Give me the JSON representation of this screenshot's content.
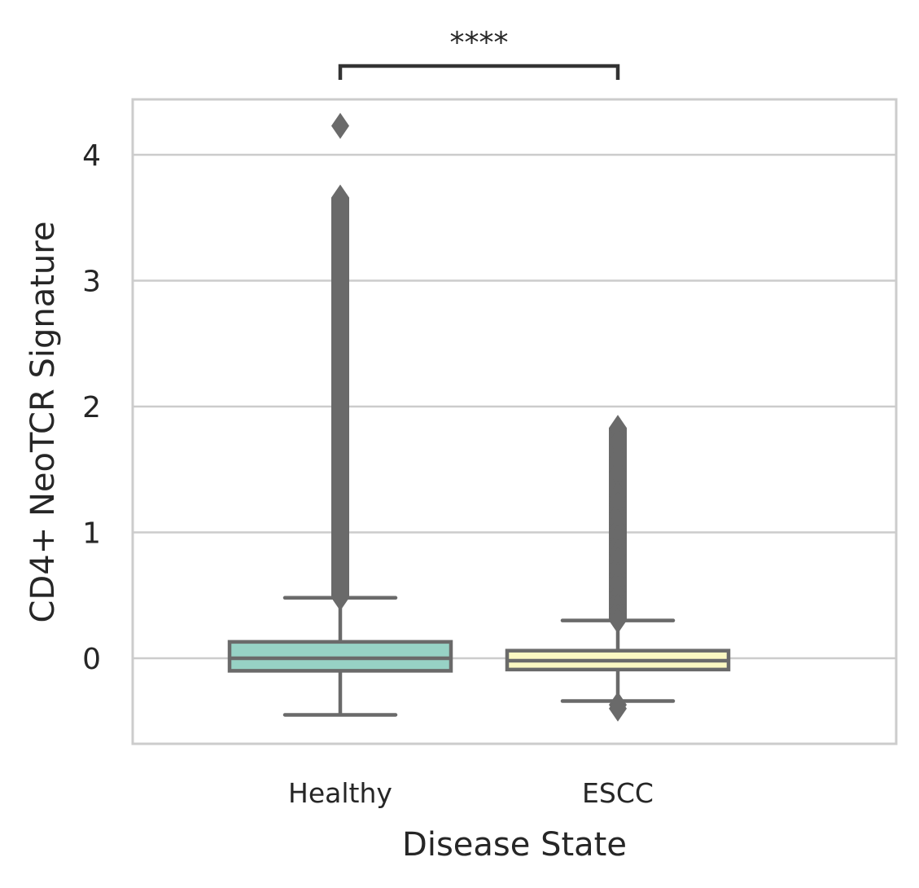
{
  "chart_data": {
    "type": "box",
    "title": "",
    "xlabel": "Disease State",
    "ylabel": "CD4+ NeoTCR Signature",
    "categories": [
      "Healthy",
      "ESCC"
    ],
    "ylim": [
      -0.68,
      4.44
    ],
    "yticks": [
      0,
      1,
      2,
      3,
      4
    ],
    "grid": "horizontal",
    "colors": {
      "Healthy": "#97d2c5",
      "ESCC": "#fbf8c2",
      "box_edge": "#6a6a6a",
      "grid": "#cccccc",
      "frame": "#cccccc",
      "bracket": "#333333"
    },
    "boxes": [
      {
        "name": "Healthy",
        "whisker_low": -0.45,
        "q1": -0.1,
        "median": 0.0,
        "q3": 0.13,
        "whisker_high": 0.48,
        "outliers_range": [
          0.48,
          3.66
        ],
        "outliers_extra": [
          4.23,
          3.66,
          3.58,
          3.5,
          3.42,
          3.35,
          3.28,
          3.2,
          3.12,
          3.05,
          2.98,
          2.9,
          2.82,
          2.75,
          2.68,
          2.6,
          2.52,
          2.45,
          2.38,
          2.3,
          2.22,
          2.15,
          2.08,
          2.0,
          1.92,
          1.85,
          1.78,
          1.7,
          1.62,
          1.55,
          1.48,
          1.4,
          1.32,
          1.25,
          1.18,
          1.1,
          1.02,
          0.95,
          0.88,
          0.8,
          0.74,
          0.68,
          0.62,
          0.57,
          0.52,
          0.48
        ]
      },
      {
        "name": "ESCC",
        "whisker_low": -0.34,
        "q1": -0.09,
        "median": -0.02,
        "q3": 0.06,
        "whisker_high": 0.3,
        "outliers_range": [
          0.3,
          1.83
        ],
        "outliers_extra": [
          1.83,
          1.72,
          1.58,
          1.47,
          1.3,
          1.22,
          1.14,
          1.08,
          1.02,
          0.96,
          0.9,
          0.84,
          0.78,
          0.72,
          0.66,
          0.6,
          0.55,
          0.5,
          0.45,
          0.41,
          0.37,
          0.33,
          0.3,
          -0.37,
          -0.4
        ]
      }
    ],
    "significance": {
      "between": [
        "Healthy",
        "ESCC"
      ],
      "label": "****"
    }
  }
}
